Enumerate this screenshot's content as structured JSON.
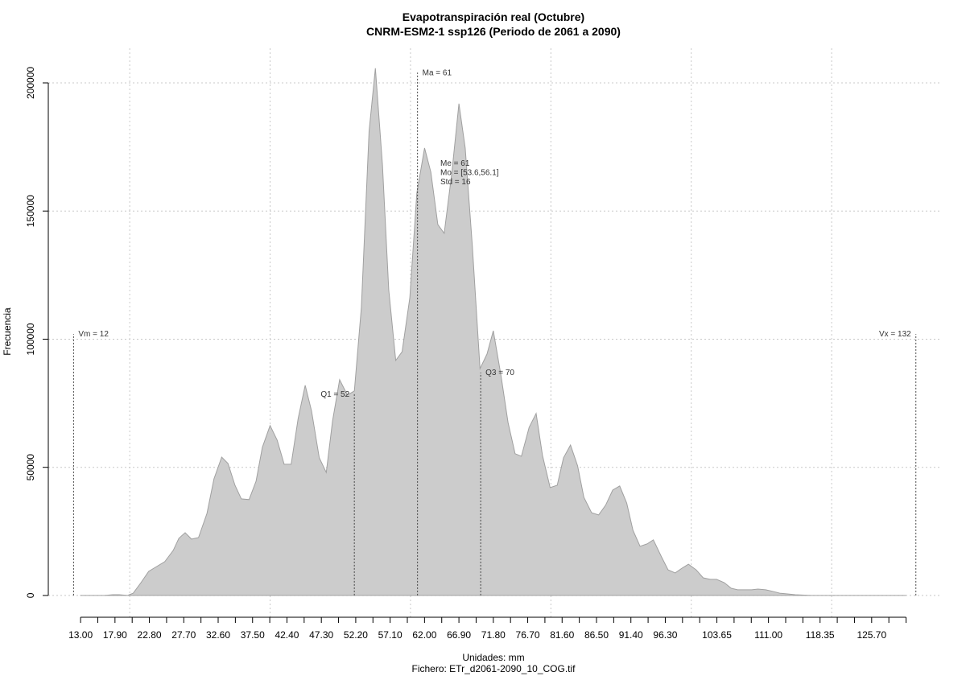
{
  "chart_data": {
    "type": "area",
    "title": "Evapotranspiración real (Octubre)",
    "subtitle": "CNRM-ESM2-1 ssp126 (Periodo de 2061 a 2090)",
    "xlabel": "Unidades: mm",
    "ylabel": "Frecuencia",
    "caption": "Fichero: ETr_d2061-2090_10_COG.tif",
    "color": "#cccccc",
    "x": [
      13.0,
      16.4,
      17.6,
      18.5,
      19.7,
      20.5,
      21.6,
      22.7,
      25.0,
      26.2,
      27.0,
      27.9,
      28.8,
      29.8,
      31.0,
      32.0,
      33.1,
      34.0,
      35.0,
      35.9,
      37.0,
      38.0,
      38.9,
      40.0,
      41.0,
      42.0,
      43.0,
      44.0,
      45.0,
      45.9,
      47.0,
      48.0,
      48.9,
      49.9,
      51.0,
      52.0,
      53.0,
      54.1,
      55.0,
      56.0,
      56.9,
      57.9,
      58.8,
      59.9,
      60.9,
      62.0,
      62.9,
      63.9,
      64.8,
      65.9,
      66.9,
      67.8,
      68.8,
      69.9,
      70.9,
      71.8,
      72.9,
      73.9,
      74.9,
      75.8,
      76.9,
      77.9,
      78.8,
      79.9,
      80.9,
      81.8,
      82.8,
      83.8,
      84.7,
      85.8,
      86.8,
      87.8,
      88.8,
      89.8,
      90.8,
      91.7,
      92.7,
      93.7,
      94.6,
      95.7,
      96.7,
      97.7,
      98.7,
      99.6,
      100.7,
      101.7,
      102.7,
      103.6,
      104.7,
      105.7,
      106.6,
      107.6,
      108.6,
      109.5,
      110.6,
      111.6,
      112.6,
      113.7,
      114.8,
      117.1,
      130.5
    ],
    "values": [
      0,
      0,
      300,
      300,
      0,
      900,
      5000,
      9400,
      13200,
      17600,
      22300,
      24500,
      22000,
      22600,
      32000,
      45500,
      54000,
      51500,
      43000,
      37700,
      37400,
      44600,
      57800,
      66300,
      60600,
      51200,
      51200,
      69100,
      82000,
      72000,
      53700,
      48000,
      68100,
      84200,
      78200,
      79800,
      112400,
      181200,
      205700,
      168000,
      119300,
      91700,
      95100,
      116200,
      157000,
      174600,
      165200,
      144700,
      141300,
      165200,
      191900,
      174600,
      136600,
      88500,
      94200,
      103300,
      85700,
      67500,
      55300,
      54300,
      65600,
      71000,
      54600,
      42100,
      43000,
      53700,
      58700,
      50600,
      38300,
      32300,
      31400,
      35200,
      41100,
      42700,
      36100,
      25400,
      19200,
      20100,
      21700,
      15400,
      10000,
      8800,
      10700,
      12200,
      10000,
      6900,
      6300,
      6300,
      5000,
      2800,
      2200,
      2200,
      2200,
      2500,
      2200,
      1600,
      900,
      600,
      300,
      0,
      0
    ],
    "xlim": [
      8.4,
      135.7
    ],
    "ylim": [
      -8500,
      213500
    ],
    "xticks": [
      {
        "value": 13,
        "label": "13.00"
      },
      {
        "value": 17.9,
        "label": "17.90"
      },
      {
        "value": 22.8,
        "label": "22.80"
      },
      {
        "value": 27.7,
        "label": "27.70"
      },
      {
        "value": 32.6,
        "label": "32.60"
      },
      {
        "value": 37.5,
        "label": "37.50"
      },
      {
        "value": 42.4,
        "label": "42.40"
      },
      {
        "value": 47.3,
        "label": "47.30"
      },
      {
        "value": 52.2,
        "label": "52.20"
      },
      {
        "value": 57.1,
        "label": "57.10"
      },
      {
        "value": 62,
        "label": "62.00"
      },
      {
        "value": 66.9,
        "label": "66.90"
      },
      {
        "value": 71.8,
        "label": "71.80"
      },
      {
        "value": 76.7,
        "label": "76.70"
      },
      {
        "value": 81.6,
        "label": "81.60"
      },
      {
        "value": 86.5,
        "label": "86.50"
      },
      {
        "value": 91.4,
        "label": "91.40"
      },
      {
        "value": 96.3,
        "label": "96.30"
      },
      {
        "value": 103.65,
        "label": "103.65"
      },
      {
        "value": 111,
        "label": "111.00"
      },
      {
        "value": 118.35,
        "label": "118.35"
      },
      {
        "value": 125.7,
        "label": "125.70"
      }
    ],
    "xticks_minor": [
      15.45,
      20.35,
      25.25,
      30.15,
      35.05,
      39.95,
      44.85,
      49.75,
      54.65,
      59.55,
      64.45,
      69.35,
      74.25,
      79.15,
      84.05,
      88.95,
      93.85,
      98.75,
      101.2,
      106.1,
      108.55,
      113.45,
      115.9,
      120.8,
      123.25,
      128.15,
      130.6
    ],
    "xgrid": [
      20,
      40,
      60,
      80,
      100,
      120
    ],
    "yticks": [
      0,
      50000,
      100000,
      150000,
      200000
    ],
    "grid": true,
    "markers": [
      {
        "label": "Vm = 12",
        "x": 12,
        "y": 102000
      },
      {
        "label": "Q1 = 52",
        "x": 52,
        "y": 78500
      },
      {
        "label": "Ma = 61",
        "x": 61,
        "y": 204000
      },
      {
        "label": "Q3 = 70",
        "x": 70,
        "y": 87000
      },
      {
        "label": "Vx = 132",
        "x": 132,
        "y": 102000
      }
    ],
    "stats": [
      "Me = 61",
      "Mo = [53.6,56.1]",
      "Std = 16"
    ]
  }
}
